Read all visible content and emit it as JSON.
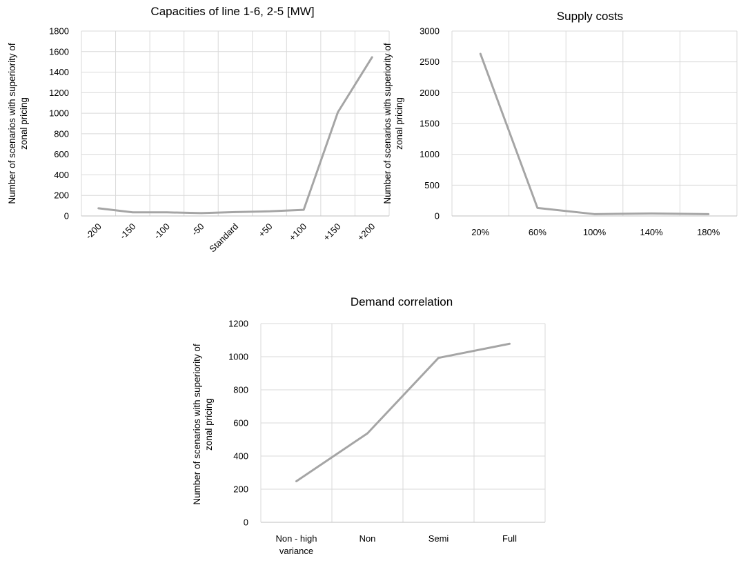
{
  "chart_data": [
    {
      "type": "line",
      "title": "Capacities of line 1-6, 2-5 [MW]",
      "ylabel": [
        "Number of scenarios with superiority of",
        "zonal pricing"
      ],
      "xlabel": "",
      "categories": [
        "-200",
        "-150",
        "-100",
        "-50",
        "Standard",
        "+50",
        "+100",
        "+150",
        "+200"
      ],
      "series": [
        {
          "values": [
            75,
            35,
            35,
            28,
            38,
            45,
            60,
            1010,
            1545
          ]
        }
      ],
      "ylim": [
        0,
        1800
      ],
      "yticks": [
        0,
        200,
        400,
        600,
        800,
        1000,
        1200,
        1400,
        1600,
        1800
      ],
      "grid": true,
      "rotate_xticks": true
    },
    {
      "type": "line",
      "title": "Supply costs",
      "ylabel": [
        "Number of scenarios with superiority of",
        "zonal pricing"
      ],
      "xlabel": "",
      "categories": [
        "20%",
        "60%",
        "100%",
        "140%",
        "180%"
      ],
      "series": [
        {
          "values": [
            2630,
            130,
            30,
            40,
            30
          ]
        }
      ],
      "ylim": [
        0,
        3000
      ],
      "yticks": [
        0,
        500,
        1000,
        1500,
        2000,
        2500,
        3000
      ],
      "grid": true,
      "rotate_xticks": false
    },
    {
      "type": "line",
      "title": "Demand correlation",
      "ylabel": [
        "Number of scenarios with superiority of",
        "zonal pricing"
      ],
      "xlabel": "",
      "categories": [
        [
          "Non - high",
          "variance"
        ],
        [
          "Non"
        ],
        [
          "Semi"
        ],
        [
          "Full"
        ]
      ],
      "series": [
        {
          "values": [
            248,
            537,
            993,
            1078
          ]
        }
      ],
      "ylim": [
        0,
        1200
      ],
      "yticks": [
        0,
        200,
        400,
        600,
        800,
        1000,
        1200
      ],
      "grid": true,
      "rotate_xticks": false
    }
  ],
  "colors": {
    "series": "#a5a5a5",
    "grid": "#d9d9d9"
  }
}
